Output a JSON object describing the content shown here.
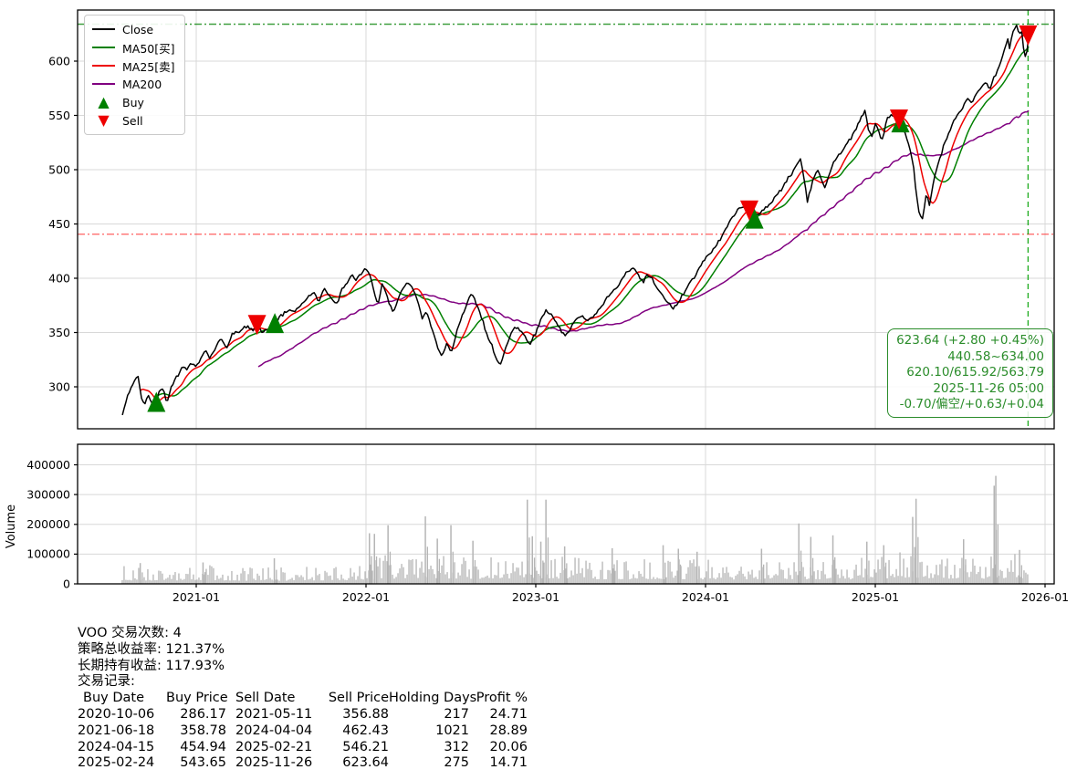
{
  "colors": {
    "close": "#000000",
    "ma50": "#008000",
    "ma25": "#ee0000",
    "ma200": "#800080",
    "volume_bar": "#b5b5b5",
    "grid": "#d8d8d8",
    "frame": "#000000",
    "annotation_green": "#2a8c2a",
    "hline_high": "#008000",
    "hline_low": "#ff4040",
    "vline": "#00a000"
  },
  "legend": {
    "items": [
      {
        "id": "close",
        "label": "Close",
        "color": "#000000",
        "type": "line"
      },
      {
        "id": "ma50",
        "label": "MA50[买]",
        "color": "#008000",
        "type": "line"
      },
      {
        "id": "ma25",
        "label": "MA25[卖]",
        "color": "#ee0000",
        "type": "line"
      },
      {
        "id": "ma200",
        "label": "MA200",
        "color": "#800080",
        "type": "line"
      },
      {
        "id": "buy",
        "label": "Buy",
        "color": "#008000",
        "type": "marker",
        "marker": "up"
      },
      {
        "id": "sell",
        "label": "Sell",
        "color": "#ee0000",
        "type": "marker",
        "marker": "down"
      }
    ]
  },
  "axes": {
    "price_ticks": [
      300,
      350,
      400,
      450,
      500,
      550,
      600
    ],
    "volume_ticks": [
      0,
      100000,
      200000,
      300000,
      400000
    ],
    "volume_label": "Volume",
    "x_tick_labels": [
      "2021-01",
      "2022-01",
      "2023-01",
      "2024-01",
      "2025-01",
      "2026-01"
    ],
    "x_tick_years": [
      2021,
      2022,
      2023,
      2024,
      2025,
      2026
    ]
  },
  "chart_data": {
    "type": "line",
    "title": "",
    "xlabel": "",
    "ylabel": "",
    "x_range_years": [
      2020.565,
      2025.904
    ],
    "price_ylim": [
      270,
      647
    ],
    "volume_ylim": [
      0,
      469000
    ],
    "grid": true,
    "legend_position": "upper-left",
    "hlines": [
      {
        "value": 634.0,
        "style": "dashdot",
        "color": "#008000",
        "name": "period-high"
      },
      {
        "value": 440.58,
        "style": "dashdot",
        "color": "#ff4040",
        "name": "period-low"
      }
    ],
    "vline": {
      "date": "2025-11-26",
      "year": 2025.9,
      "style": "dashed",
      "color": "#00a000"
    },
    "ma_windows_years": {
      "ma25": 0.1,
      "ma50": 0.2,
      "ma200": 0.8
    },
    "close": [
      [
        2020.565,
        274
      ],
      [
        2020.59,
        289
      ],
      [
        2020.61,
        296
      ],
      [
        2020.635,
        306
      ],
      [
        2020.655,
        310
      ],
      [
        2020.675,
        290
      ],
      [
        2020.695,
        282
      ],
      [
        2020.715,
        292
      ],
      [
        2020.735,
        285
      ],
      [
        2020.765,
        286.2
      ],
      [
        2020.785,
        296
      ],
      [
        2020.805,
        299
      ],
      [
        2020.825,
        284
      ],
      [
        2020.855,
        301
      ],
      [
        2020.875,
        308
      ],
      [
        2020.895,
        311
      ],
      [
        2020.92,
        318
      ],
      [
        2020.945,
        315
      ],
      [
        2020.97,
        321
      ],
      [
        2021.0,
        318
      ],
      [
        2021.03,
        327
      ],
      [
        2021.055,
        335
      ],
      [
        2021.08,
        325
      ],
      [
        2021.105,
        333
      ],
      [
        2021.13,
        342
      ],
      [
        2021.155,
        345
      ],
      [
        2021.18,
        334
      ],
      [
        2021.21,
        348
      ],
      [
        2021.24,
        350
      ],
      [
        2021.27,
        354
      ],
      [
        2021.3,
        356
      ],
      [
        2021.33,
        351
      ],
      [
        2021.358,
        356.9
      ],
      [
        2021.39,
        350
      ],
      [
        2021.42,
        353
      ],
      [
        2021.463,
        358.8
      ],
      [
        2021.49,
        364
      ],
      [
        2021.52,
        368
      ],
      [
        2021.55,
        372
      ],
      [
        2021.575,
        368
      ],
      [
        2021.605,
        374
      ],
      [
        2021.635,
        379
      ],
      [
        2021.665,
        384
      ],
      [
        2021.695,
        387
      ],
      [
        2021.72,
        378
      ],
      [
        2021.75,
        390
      ],
      [
        2021.775,
        386
      ],
      [
        2021.8,
        380
      ],
      [
        2021.83,
        376
      ],
      [
        2021.86,
        390
      ],
      [
        2021.89,
        396
      ],
      [
        2021.915,
        404
      ],
      [
        2021.94,
        398
      ],
      [
        2021.965,
        403
      ],
      [
        2022.0,
        409
      ],
      [
        2022.02,
        404
      ],
      [
        2022.045,
        390
      ],
      [
        2022.07,
        377
      ],
      [
        2022.095,
        394
      ],
      [
        2022.12,
        386
      ],
      [
        2022.155,
        369
      ],
      [
        2022.185,
        378
      ],
      [
        2022.215,
        390
      ],
      [
        2022.245,
        397
      ],
      [
        2022.275,
        391
      ],
      [
        2022.305,
        379
      ],
      [
        2022.33,
        363
      ],
      [
        2022.36,
        369
      ],
      [
        2022.39,
        352
      ],
      [
        2022.415,
        341
      ],
      [
        2022.445,
        328
      ],
      [
        2022.475,
        339
      ],
      [
        2022.505,
        333
      ],
      [
        2022.535,
        352
      ],
      [
        2022.565,
        364
      ],
      [
        2022.595,
        376
      ],
      [
        2022.62,
        385
      ],
      [
        2022.65,
        377
      ],
      [
        2022.68,
        364
      ],
      [
        2022.71,
        349
      ],
      [
        2022.74,
        339
      ],
      [
        2022.765,
        327
      ],
      [
        2022.79,
        320
      ],
      [
        2022.82,
        335
      ],
      [
        2022.85,
        347
      ],
      [
        2022.88,
        356
      ],
      [
        2022.91,
        351
      ],
      [
        2022.94,
        347
      ],
      [
        2022.965,
        339
      ],
      [
        2023.0,
        350
      ],
      [
        2023.03,
        361
      ],
      [
        2023.06,
        371
      ],
      [
        2023.09,
        366
      ],
      [
        2023.12,
        358
      ],
      [
        2023.15,
        352
      ],
      [
        2023.18,
        347
      ],
      [
        2023.21,
        356
      ],
      [
        2023.24,
        363
      ],
      [
        2023.27,
        365
      ],
      [
        2023.3,
        361
      ],
      [
        2023.33,
        364
      ],
      [
        2023.36,
        369
      ],
      [
        2023.395,
        376
      ],
      [
        2023.425,
        382
      ],
      [
        2023.455,
        387
      ],
      [
        2023.485,
        394
      ],
      [
        2023.515,
        401
      ],
      [
        2023.545,
        407
      ],
      [
        2023.57,
        411
      ],
      [
        2023.6,
        405
      ],
      [
        2023.63,
        396
      ],
      [
        2023.66,
        403
      ],
      [
        2023.69,
        399
      ],
      [
        2023.72,
        389
      ],
      [
        2023.75,
        384
      ],
      [
        2023.775,
        379
      ],
      [
        2023.81,
        372
      ],
      [
        2023.84,
        379
      ],
      [
        2023.87,
        386
      ],
      [
        2023.9,
        394
      ],
      [
        2023.93,
        401
      ],
      [
        2023.96,
        408
      ],
      [
        2023.99,
        417
      ],
      [
        2024.02,
        422
      ],
      [
        2024.05,
        428
      ],
      [
        2024.08,
        434
      ],
      [
        2024.11,
        442
      ],
      [
        2024.14,
        452
      ],
      [
        2024.17,
        458
      ],
      [
        2024.2,
        464
      ],
      [
        2024.23,
        467
      ],
      [
        2024.258,
        462.4
      ],
      [
        2024.28,
        449
      ],
      [
        2024.288,
        454.9
      ],
      [
        2024.32,
        460
      ],
      [
        2024.35,
        464
      ],
      [
        2024.385,
        469
      ],
      [
        2024.415,
        475
      ],
      [
        2024.445,
        482
      ],
      [
        2024.475,
        489
      ],
      [
        2024.51,
        497
      ],
      [
        2024.54,
        505
      ],
      [
        2024.56,
        509
      ],
      [
        2024.585,
        487
      ],
      [
        2024.6,
        470
      ],
      [
        2024.63,
        490
      ],
      [
        2024.66,
        500
      ],
      [
        2024.68,
        492
      ],
      [
        2024.7,
        484
      ],
      [
        2024.73,
        497
      ],
      [
        2024.76,
        508
      ],
      [
        2024.79,
        515
      ],
      [
        2024.82,
        521
      ],
      [
        2024.85,
        528
      ],
      [
        2024.88,
        535
      ],
      [
        2024.91,
        546
      ],
      [
        2024.94,
        554
      ],
      [
        2024.96,
        537
      ],
      [
        2024.98,
        530
      ],
      [
        2025.0,
        543
      ],
      [
        2025.02,
        535
      ],
      [
        2025.04,
        526
      ],
      [
        2025.07,
        548
      ],
      [
        2025.1,
        551
      ],
      [
        2025.125,
        552
      ],
      [
        2025.14,
        546.2
      ],
      [
        2025.148,
        543.7
      ],
      [
        2025.18,
        531
      ],
      [
        2025.2,
        522
      ],
      [
        2025.22,
        509
      ],
      [
        2025.24,
        481
      ],
      [
        2025.26,
        458
      ],
      [
        2025.28,
        455
      ],
      [
        2025.3,
        478
      ],
      [
        2025.32,
        466
      ],
      [
        2025.345,
        492
      ],
      [
        2025.37,
        505
      ],
      [
        2025.4,
        521
      ],
      [
        2025.43,
        533
      ],
      [
        2025.46,
        543
      ],
      [
        2025.49,
        552
      ],
      [
        2025.52,
        559
      ],
      [
        2025.55,
        566
      ],
      [
        2025.57,
        561
      ],
      [
        2025.6,
        570
      ],
      [
        2025.63,
        576
      ],
      [
        2025.65,
        581
      ],
      [
        2025.67,
        574
      ],
      [
        2025.7,
        585
      ],
      [
        2025.72,
        593
      ],
      [
        2025.74,
        601
      ],
      [
        2025.76,
        610
      ],
      [
        2025.78,
        620
      ],
      [
        2025.79,
        612
      ],
      [
        2025.81,
        626
      ],
      [
        2025.83,
        634
      ],
      [
        2025.85,
        625
      ],
      [
        2025.862,
        630
      ],
      [
        2025.875,
        610
      ],
      [
        2025.888,
        601
      ],
      [
        2025.904,
        623.64
      ]
    ],
    "markers": {
      "buys": [
        {
          "date": "2020-10-06",
          "year": 2020.765,
          "price": 286.17
        },
        {
          "date": "2021-06-18",
          "year": 2021.463,
          "price": 358.78
        },
        {
          "date": "2024-04-15",
          "year": 2024.288,
          "price": 454.94
        },
        {
          "date": "2025-02-24",
          "year": 2025.148,
          "price": 543.65
        }
      ],
      "sells": [
        {
          "date": "2021-05-11",
          "year": 2021.358,
          "price": 356.88
        },
        {
          "date": "2024-04-04",
          "year": 2024.258,
          "price": 462.43
        },
        {
          "date": "2025-02-21",
          "year": 2025.14,
          "price": 546.21
        },
        {
          "date": "2025-11-26",
          "year": 2025.9,
          "price": 623.64
        }
      ]
    },
    "volume": {
      "envelope": [
        [
          2020.565,
          40000
        ],
        [
          2020.8,
          36000
        ],
        [
          2021.0,
          40000
        ],
        [
          2021.3,
          36000
        ],
        [
          2021.6,
          35000
        ],
        [
          2021.9,
          42000
        ],
        [
          2022.1,
          58000
        ],
        [
          2022.4,
          62000
        ],
        [
          2022.7,
          55000
        ],
        [
          2023.0,
          62000
        ],
        [
          2023.3,
          52000
        ],
        [
          2023.6,
          50000
        ],
        [
          2023.9,
          52000
        ],
        [
          2024.2,
          48000
        ],
        [
          2024.5,
          52000
        ],
        [
          2024.8,
          50000
        ],
        [
          2025.0,
          55000
        ],
        [
          2025.2,
          70000
        ],
        [
          2025.4,
          60000
        ],
        [
          2025.6,
          55000
        ],
        [
          2025.75,
          65000
        ],
        [
          2025.904,
          60000
        ]
      ],
      "spikes": [
        [
          2020.67,
          70000
        ],
        [
          2021.04,
          72000
        ],
        [
          2021.46,
          86000
        ],
        [
          2022.02,
          170000
        ],
        [
          2022.05,
          168000
        ],
        [
          2022.13,
          197000
        ],
        [
          2022.35,
          227000
        ],
        [
          2022.42,
          152000
        ],
        [
          2022.5,
          197000
        ],
        [
          2022.63,
          145000
        ],
        [
          2022.95,
          283000
        ],
        [
          2022.98,
          160000
        ],
        [
          2023.03,
          142000
        ],
        [
          2023.06,
          283000
        ],
        [
          2023.17,
          126000
        ],
        [
          2023.45,
          120000
        ],
        [
          2023.75,
          130000
        ],
        [
          2023.84,
          118000
        ],
        [
          2023.95,
          108000
        ],
        [
          2024.33,
          118000
        ],
        [
          2024.55,
          203000
        ],
        [
          2024.62,
          158000
        ],
        [
          2024.75,
          163000
        ],
        [
          2024.95,
          142000
        ],
        [
          2025.05,
          130000
        ],
        [
          2025.22,
          225000
        ],
        [
          2025.24,
          286000
        ],
        [
          2025.52,
          150000
        ],
        [
          2025.7,
          330000
        ],
        [
          2025.71,
          363000
        ],
        [
          2025.85,
          114000
        ]
      ]
    }
  },
  "annotation": {
    "lines": [
      "623.64 (+2.80 +0.45%)",
      "440.58~634.00",
      "620.10/615.92/563.79",
      "2025-11-26 05:00",
      "-0.70/偏空/+0.63/+0.04"
    ]
  },
  "stats": {
    "lines": [
      "VOO 交易次数: 4",
      "策略总收益率: 121.37%",
      "长期持有收益: 117.93%",
      "交易记录:"
    ],
    "table": {
      "headers": [
        "Buy Date",
        "Buy Price",
        "Sell Date",
        "Sell Price",
        "Holding Days",
        "Profit %"
      ],
      "rows": [
        [
          "2020-10-06",
          "286.17",
          "2021-05-11",
          "356.88",
          "217",
          "24.71"
        ],
        [
          "2021-06-18",
          "358.78",
          "2024-04-04",
          "462.43",
          "1021",
          "28.89"
        ],
        [
          "2024-04-15",
          "454.94",
          "2025-02-21",
          "546.21",
          "312",
          "20.06"
        ],
        [
          "2025-02-24",
          "543.65",
          "2025-11-26",
          "623.64",
          "275",
          "14.71"
        ]
      ]
    }
  }
}
